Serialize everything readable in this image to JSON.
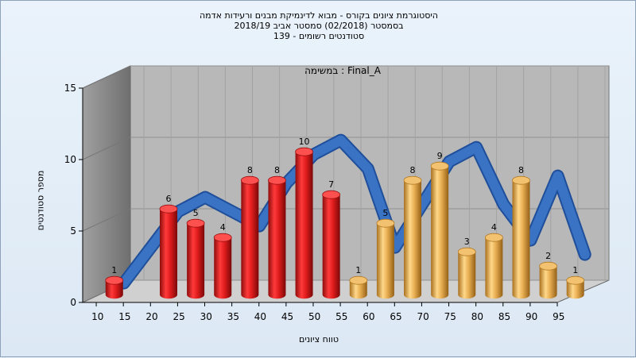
{
  "titles": {
    "line1": "היסטוגרמת ציונים בקורס - מבוא לדינמיקת מבנים ורעידות אדמה",
    "line2": "בסמסטר  (02/2018)  סמסטר אביב 2018/19",
    "line3": "סטודנטים רשומים - 139"
  },
  "chart_data": {
    "type": "bar",
    "annotation": "במשימה : Final_A",
    "xlabel": "טווח ציונים",
    "ylabel": "מספר סטודנטים",
    "x_ticks": [
      "10",
      "15",
      "20",
      "25",
      "30",
      "35",
      "40",
      "45",
      "50",
      "55",
      "60",
      "65",
      "70",
      "75",
      "80",
      "85",
      "90",
      "95"
    ],
    "y_ticks": [
      0,
      5,
      10,
      15
    ],
    "ylim": [
      0,
      15
    ],
    "grid": true,
    "categories": [
      "10",
      "20",
      "25",
      "30",
      "35",
      "40",
      "45",
      "50",
      "55",
      "60",
      "65",
      "70",
      "75",
      "80",
      "85",
      "90",
      "95"
    ],
    "values": [
      1,
      6,
      5,
      4,
      8,
      8,
      10,
      7,
      1,
      5,
      8,
      9,
      3,
      4,
      8,
      2,
      1
    ],
    "colors": {
      "fail": "#d42020",
      "pass": "#e0a84a",
      "curve": "#3a72c4",
      "wall_back": "#b8b8b8",
      "wall_side": "#8a8a8a",
      "floor": "#d0d0d0"
    },
    "curve": {
      "x": [
        10,
        20,
        25,
        30,
        35,
        40,
        45,
        50,
        55,
        60,
        65,
        70,
        75,
        80,
        85,
        90,
        95
      ],
      "y": [
        0.5,
        5.5,
        6.5,
        5.5,
        4.5,
        7.5,
        9.5,
        10.5,
        8.5,
        3,
        6,
        9,
        10,
        6,
        3.5,
        8,
        2.5
      ]
    }
  }
}
